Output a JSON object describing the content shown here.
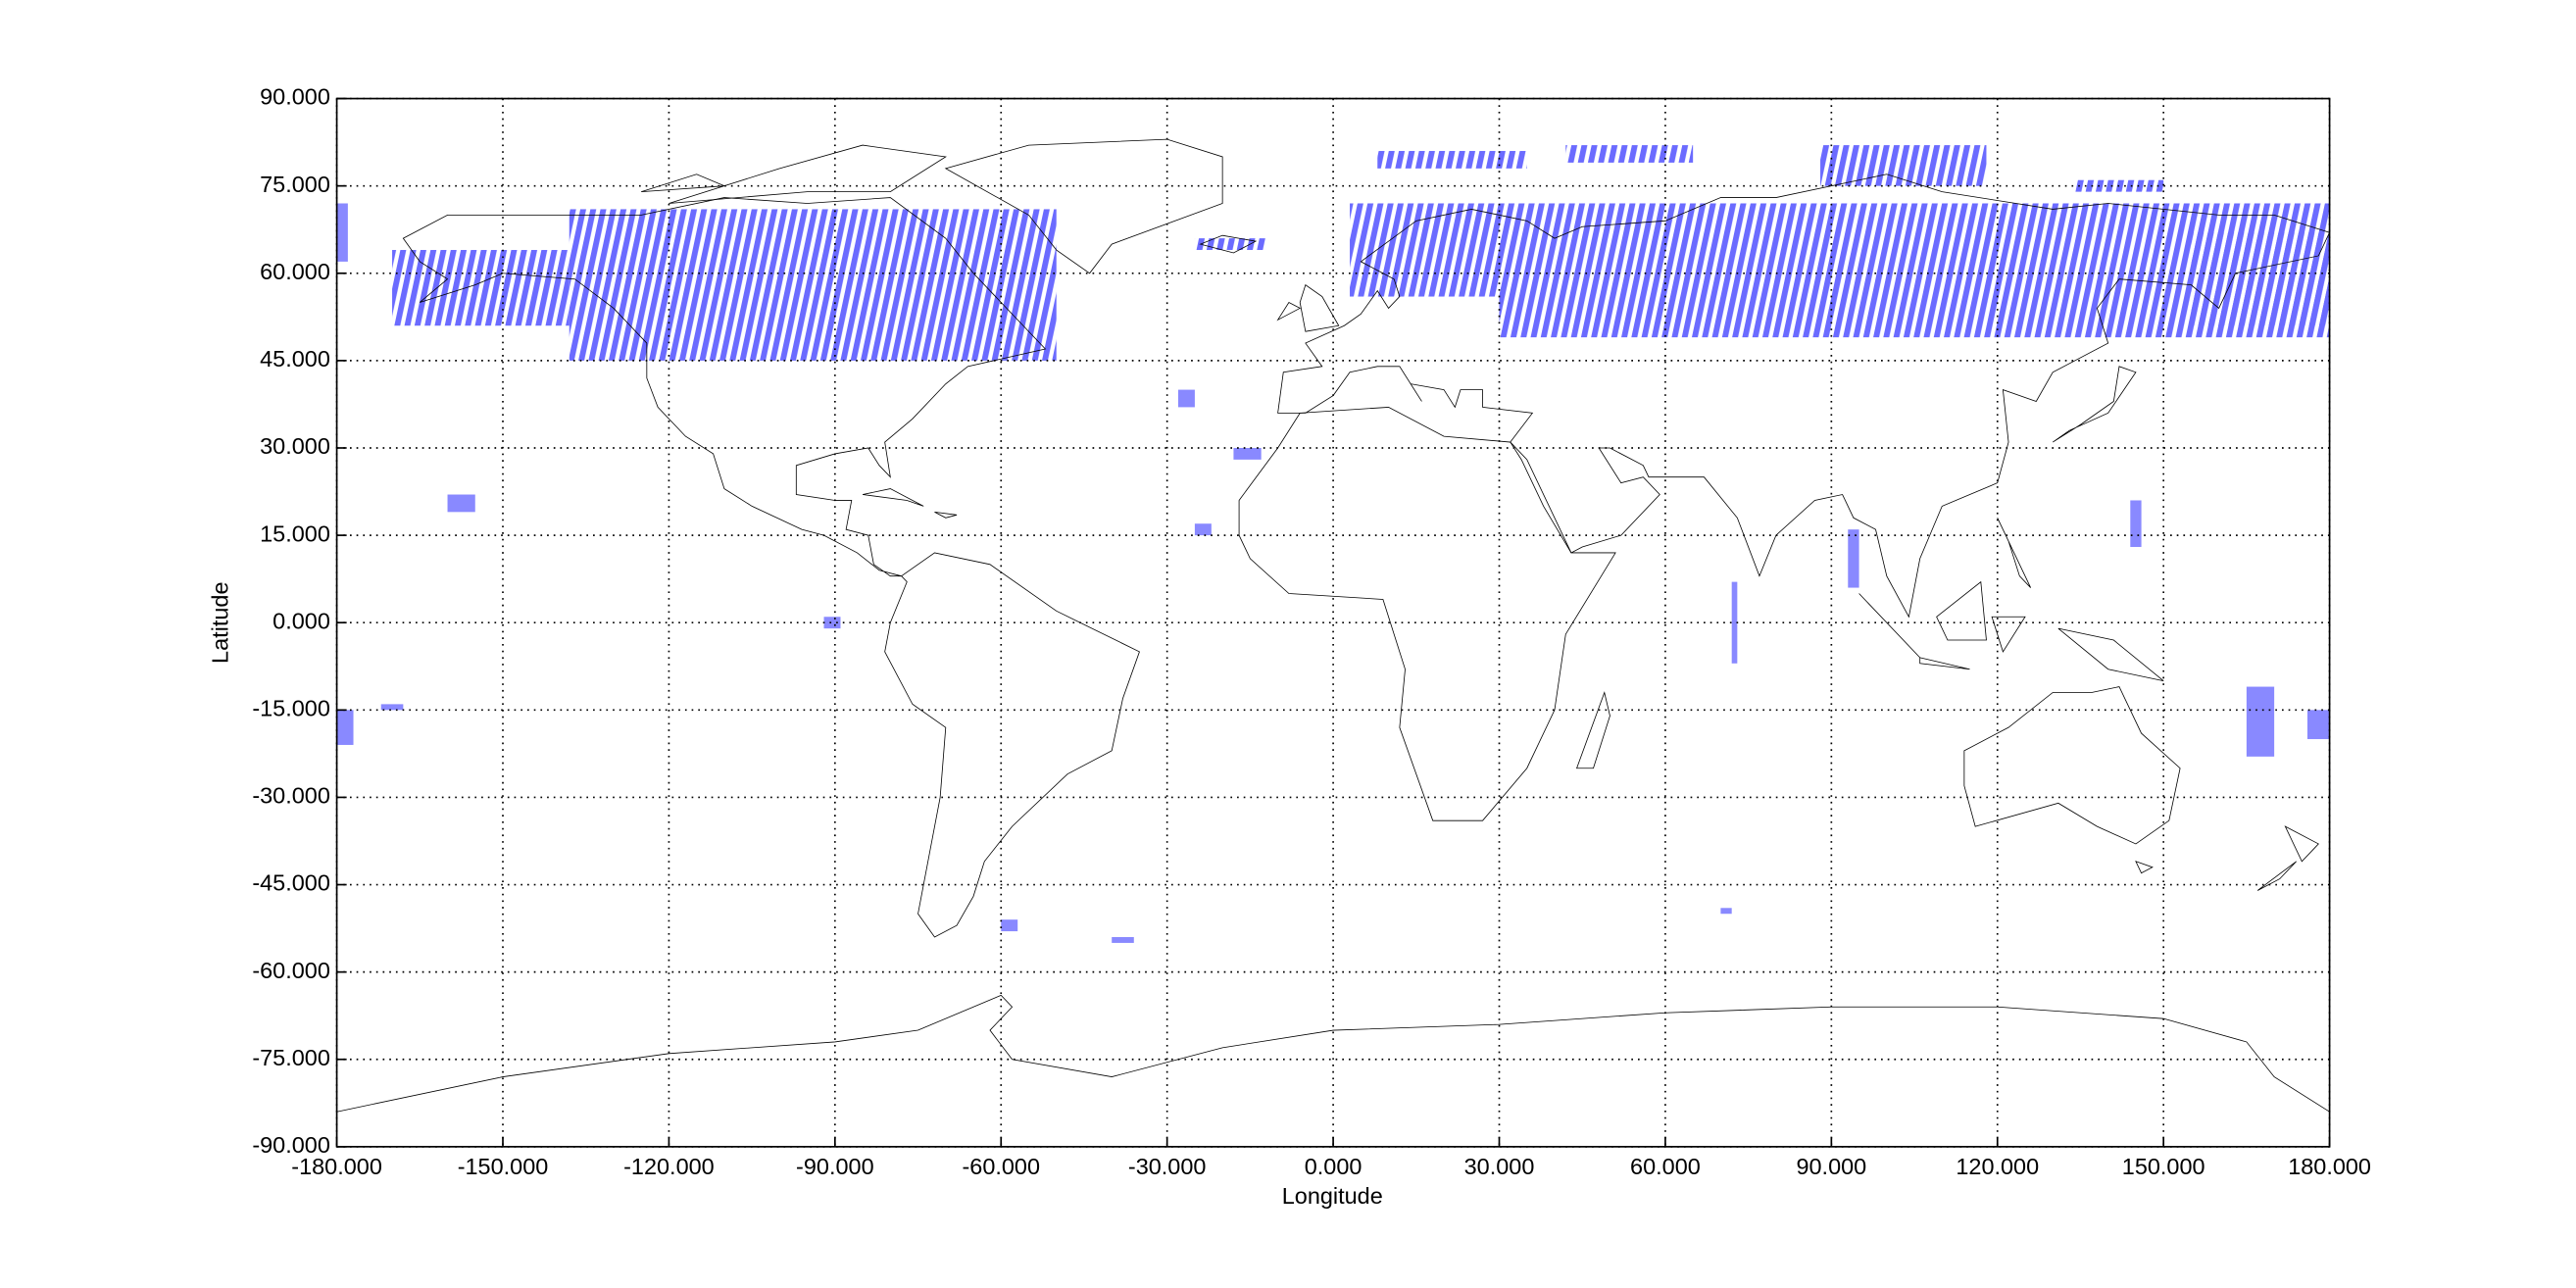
{
  "chart_data": {
    "type": "map",
    "xlabel": "Longitude",
    "ylabel": "Latitude",
    "xlim": [
      -180,
      180
    ],
    "ylim": [
      -90,
      90
    ],
    "xticks": [
      {
        "value": -180,
        "label": "-180.000"
      },
      {
        "value": -150,
        "label": "-150.000"
      },
      {
        "value": -120,
        "label": "-120.000"
      },
      {
        "value": -90,
        "label": "-90.000"
      },
      {
        "value": -60,
        "label": "-60.000"
      },
      {
        "value": -30,
        "label": "-30.000"
      },
      {
        "value": 0,
        "label": "0.000"
      },
      {
        "value": 30,
        "label": "30.000"
      },
      {
        "value": 60,
        "label": "60.000"
      },
      {
        "value": 90,
        "label": "90.000"
      },
      {
        "value": 120,
        "label": "120.000"
      },
      {
        "value": 150,
        "label": "150.000"
      },
      {
        "value": 180,
        "label": "180.000"
      }
    ],
    "yticks": [
      {
        "value": -90,
        "label": "-90.000"
      },
      {
        "value": -75,
        "label": "-75.000"
      },
      {
        "value": -60,
        "label": "-60.000"
      },
      {
        "value": -45,
        "label": "-45.000"
      },
      {
        "value": -30,
        "label": "-30.000"
      },
      {
        "value": -15,
        "label": "-15.000"
      },
      {
        "value": 0,
        "label": "0.000"
      },
      {
        "value": 15,
        "label": "15.000"
      },
      {
        "value": 30,
        "label": "30.000"
      },
      {
        "value": 45,
        "label": "45.000"
      },
      {
        "value": 60,
        "label": "60.000"
      },
      {
        "value": 75,
        "label": "75.000"
      },
      {
        "value": 90,
        "label": "90.000"
      }
    ],
    "grid": true,
    "color": "#6b6bff",
    "regions": [
      {
        "lon": [
          -180,
          -178
        ],
        "lat": [
          62,
          72
        ]
      },
      {
        "lon": [
          -170,
          -138
        ],
        "lat": [
          51,
          64
        ]
      },
      {
        "lon": [
          -138,
          -50
        ],
        "lat": [
          45,
          71
        ]
      },
      {
        "lon": [
          -25,
          -12
        ],
        "lat": [
          64,
          66
        ]
      },
      {
        "lon": [
          3,
          30
        ],
        "lat": [
          56,
          72
        ]
      },
      {
        "lon": [
          30,
          180
        ],
        "lat": [
          49,
          72
        ]
      },
      {
        "lon": [
          8,
          35
        ],
        "lat": [
          78,
          81
        ]
      },
      {
        "lon": [
          42,
          65
        ],
        "lat": [
          79,
          82
        ]
      },
      {
        "lon": [
          88,
          118
        ],
        "lat": [
          75,
          82
        ]
      },
      {
        "lon": [
          134,
          150
        ],
        "lat": [
          74,
          76
        ]
      },
      {
        "lon": [
          155,
          180
        ],
        "lat": [
          51,
          67
        ]
      },
      {
        "lon": [
          -160,
          -155
        ],
        "lat": [
          19,
          22
        ]
      },
      {
        "lon": [
          -28,
          -25
        ],
        "lat": [
          37,
          40
        ]
      },
      {
        "lon": [
          -18,
          -13
        ],
        "lat": [
          28,
          30
        ]
      },
      {
        "lon": [
          -25,
          -22
        ],
        "lat": [
          15,
          17
        ]
      },
      {
        "lon": [
          -92,
          -89
        ],
        "lat": [
          -1,
          1
        ]
      },
      {
        "lon": [
          -180,
          -177
        ],
        "lat": [
          -21,
          -15
        ]
      },
      {
        "lon": [
          -172,
          -168
        ],
        "lat": [
          -15,
          -14
        ]
      },
      {
        "lon": [
          -60,
          -57
        ],
        "lat": [
          -53,
          -51
        ]
      },
      {
        "lon": [
          -40,
          -36
        ],
        "lat": [
          -55,
          -54
        ]
      },
      {
        "lon": [
          70,
          72
        ],
        "lat": [
          -50,
          -49
        ]
      },
      {
        "lon": [
          72,
          73
        ],
        "lat": [
          -7,
          7
        ]
      },
      {
        "lon": [
          93,
          95
        ],
        "lat": [
          6,
          16
        ]
      },
      {
        "lon": [
          144,
          146
        ],
        "lat": [
          13,
          21
        ]
      },
      {
        "lon": [
          165,
          170
        ],
        "lat": [
          -23,
          -11
        ]
      },
      {
        "lon": [
          176,
          180
        ],
        "lat": [
          -20,
          -15
        ]
      }
    ]
  }
}
